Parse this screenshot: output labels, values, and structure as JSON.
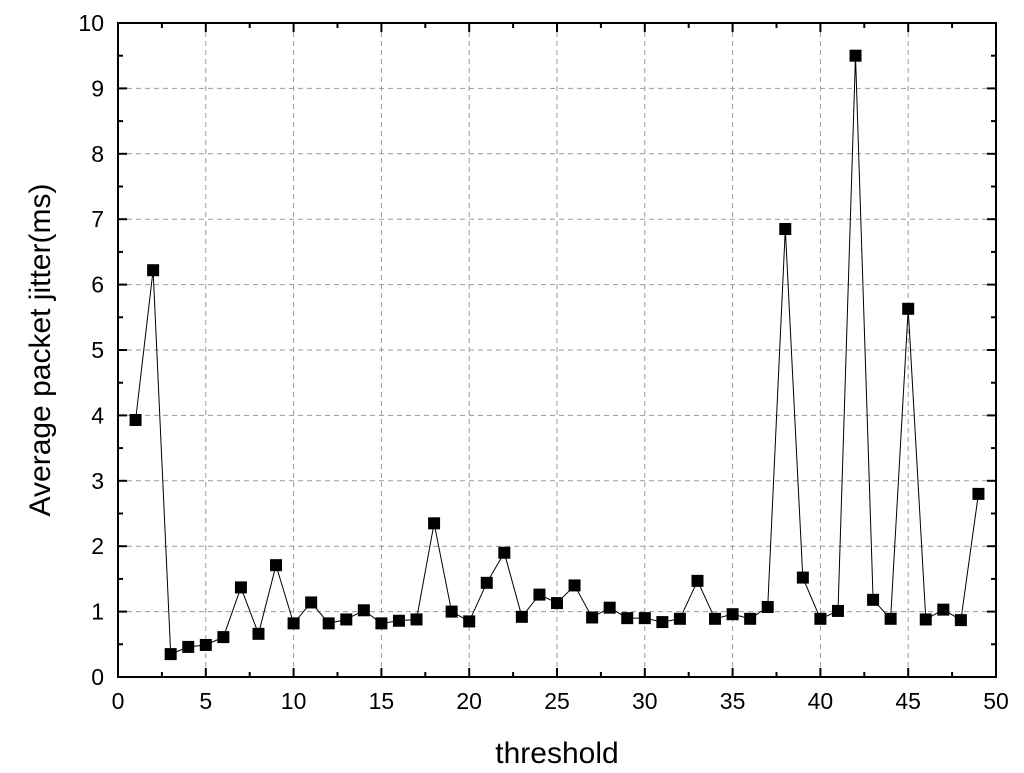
{
  "chart_data": {
    "type": "line",
    "title": "",
    "xlabel": "threshold",
    "ylabel": "Average packet jitter(ms)",
    "xlim": [
      0,
      50
    ],
    "ylim": [
      0,
      10
    ],
    "xticks": [
      0,
      5,
      10,
      15,
      20,
      25,
      30,
      35,
      40,
      45,
      50
    ],
    "yticks": [
      0,
      1,
      2,
      3,
      4,
      5,
      6,
      7,
      8,
      9,
      10
    ],
    "grid": true,
    "grid_style": "dashed",
    "marker": "square",
    "line_color": "#000000",
    "marker_color": "#000000",
    "series": [
      {
        "x": [
          1,
          2,
          3,
          4,
          5,
          6,
          7,
          8,
          9,
          10,
          11,
          12,
          13,
          14,
          15,
          16,
          17,
          18,
          19,
          20,
          21,
          22,
          23,
          24,
          25,
          26,
          27,
          28,
          29,
          30,
          31,
          32,
          33,
          34,
          35,
          36,
          37,
          38,
          39,
          40,
          41,
          42,
          43,
          44,
          45,
          46,
          47,
          48,
          49
        ],
        "values": [
          3.93,
          6.22,
          0.35,
          0.46,
          0.49,
          0.61,
          1.37,
          0.66,
          1.71,
          0.82,
          1.14,
          0.82,
          0.88,
          1.02,
          0.82,
          0.86,
          0.88,
          2.35,
          1.0,
          0.85,
          1.44,
          1.9,
          0.92,
          1.26,
          1.13,
          1.4,
          0.91,
          1.06,
          0.9,
          0.9,
          0.84,
          0.89,
          1.47,
          0.89,
          0.96,
          0.89,
          1.07,
          6.85,
          1.52,
          0.89,
          1.01,
          9.5,
          1.18,
          0.89,
          5.63,
          0.88,
          1.03,
          0.87,
          2.8
        ]
      }
    ]
  }
}
